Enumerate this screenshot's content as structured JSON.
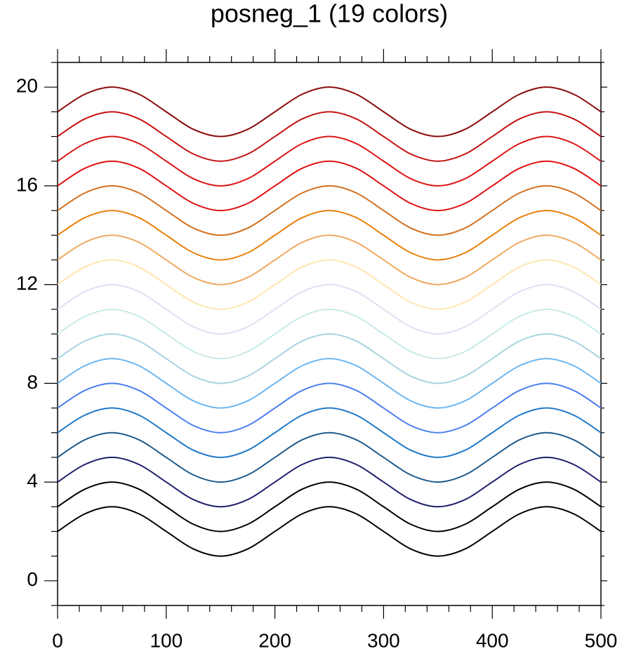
{
  "chart_data": {
    "type": "line",
    "title": "posneg_1 (19 colors)",
    "x": [
      0,
      25,
      50,
      75,
      100,
      125,
      150,
      175,
      200,
      225,
      250,
      275,
      300,
      325,
      350,
      375,
      400,
      425,
      450,
      475,
      500
    ],
    "xlim": [
      0,
      500
    ],
    "ylim": [
      -1,
      21
    ],
    "xticks": [
      0,
      100,
      200,
      300,
      400,
      500
    ],
    "yticks": [
      0,
      4,
      8,
      12,
      16,
      20
    ],
    "xminorticks": [
      20,
      40,
      60,
      80,
      120,
      140,
      160,
      180,
      220,
      240,
      260,
      280,
      320,
      340,
      360,
      380,
      420,
      440,
      460,
      480
    ],
    "yminorticks": [
      -1,
      1,
      2,
      3,
      5,
      6,
      7,
      9,
      10,
      11,
      13,
      14,
      15,
      17,
      18,
      19,
      21
    ],
    "series": [
      {
        "color": "#000000",
        "values": [
          2,
          2.71,
          3,
          2.71,
          2,
          1.29,
          1,
          1.29,
          2,
          2.71,
          3,
          2.71,
          2,
          1.29,
          1,
          1.29,
          2,
          2.71,
          3,
          2.71,
          2
        ]
      },
      {
        "color": "#000000",
        "values": [
          3,
          3.71,
          4,
          3.71,
          3,
          2.29,
          2,
          2.29,
          3,
          3.71,
          4,
          3.71,
          3,
          2.29,
          2,
          2.29,
          3,
          3.71,
          4,
          3.71,
          3
        ]
      },
      {
        "color": "#1f1f6e",
        "values": [
          4,
          4.71,
          5,
          4.71,
          4,
          3.29,
          3,
          3.29,
          4,
          4.71,
          5,
          4.71,
          4,
          3.29,
          3,
          3.29,
          4,
          4.71,
          5,
          4.71,
          4
        ]
      },
      {
        "color": "#1e5a8c",
        "values": [
          5,
          5.71,
          6,
          5.71,
          5,
          4.29,
          4,
          4.29,
          5,
          5.71,
          6,
          5.71,
          5,
          4.29,
          4,
          4.29,
          5,
          5.71,
          6,
          5.71,
          5
        ]
      },
      {
        "color": "#1f78c8",
        "values": [
          6,
          6.71,
          7,
          6.71,
          6,
          5.29,
          5,
          5.29,
          6,
          6.71,
          7,
          6.71,
          6,
          5.29,
          5,
          5.29,
          6,
          6.71,
          7,
          6.71,
          6
        ]
      },
      {
        "color": "#4a7ef0",
        "values": [
          7,
          7.71,
          8,
          7.71,
          7,
          6.29,
          6,
          6.29,
          7,
          7.71,
          8,
          7.71,
          7,
          6.29,
          6,
          6.29,
          7,
          7.71,
          8,
          7.71,
          7
        ]
      },
      {
        "color": "#6db6f0",
        "values": [
          8,
          8.71,
          9,
          8.71,
          8,
          7.29,
          7,
          7.29,
          8,
          8.71,
          9,
          8.71,
          8,
          7.29,
          7,
          7.29,
          8,
          8.71,
          9,
          8.71,
          8
        ]
      },
      {
        "color": "#a8d4e0",
        "values": [
          9,
          9.71,
          10,
          9.71,
          9,
          8.29,
          8,
          8.29,
          9,
          9.71,
          10,
          9.71,
          9,
          8.29,
          8,
          8.29,
          9,
          9.71,
          10,
          9.71,
          9
        ]
      },
      {
        "color": "#c8eaea",
        "values": [
          10,
          10.71,
          11,
          10.71,
          10,
          9.29,
          9,
          9.29,
          10,
          10.71,
          11,
          10.71,
          10,
          9.29,
          9,
          9.29,
          10,
          10.71,
          11,
          10.71,
          10
        ]
      },
      {
        "color": "#e0e0f4",
        "values": [
          11,
          11.71,
          12,
          11.71,
          11,
          10.29,
          10,
          10.29,
          11,
          11.71,
          12,
          11.71,
          11,
          10.29,
          10,
          10.29,
          11,
          11.71,
          12,
          11.71,
          11
        ]
      },
      {
        "color": "#ffe6b0",
        "values": [
          12,
          12.71,
          13,
          12.71,
          12,
          11.29,
          11,
          11.29,
          12,
          12.71,
          13,
          12.71,
          12,
          11.29,
          11,
          11.29,
          12,
          12.71,
          13,
          12.71,
          12
        ]
      },
      {
        "color": "#f0a860",
        "values": [
          13,
          13.71,
          14,
          13.71,
          13,
          12.29,
          12,
          12.29,
          13,
          13.71,
          14,
          13.71,
          13,
          12.29,
          12,
          12.29,
          13,
          13.71,
          14,
          13.71,
          13
        ]
      },
      {
        "color": "#e8800a",
        "values": [
          14,
          14.71,
          15,
          14.71,
          14,
          13.29,
          13,
          13.29,
          14,
          14.71,
          15,
          14.71,
          14,
          13.29,
          13,
          13.29,
          14,
          14.71,
          15,
          14.71,
          14
        ]
      },
      {
        "color": "#d27020",
        "values": [
          15,
          15.71,
          16,
          15.71,
          15,
          14.29,
          14,
          14.29,
          15,
          15.71,
          16,
          15.71,
          15,
          14.29,
          14,
          14.29,
          15,
          15.71,
          16,
          15.71,
          15
        ]
      },
      {
        "color": "#e01010",
        "values": [
          16,
          16.71,
          17,
          16.71,
          16,
          15.29,
          15,
          15.29,
          16,
          16.71,
          17,
          16.71,
          16,
          15.29,
          15,
          15.29,
          16,
          16.71,
          17,
          16.71,
          16
        ]
      },
      {
        "color": "#dc1414",
        "values": [
          17,
          17.71,
          18,
          17.71,
          17,
          16.29,
          16,
          16.29,
          17,
          17.71,
          18,
          17.71,
          17,
          16.29,
          16,
          16.29,
          17,
          17.71,
          18,
          17.71,
          17
        ]
      },
      {
        "color": "#c41010",
        "values": [
          18,
          18.71,
          19,
          18.71,
          18,
          17.29,
          17,
          17.29,
          18,
          18.71,
          19,
          18.71,
          18,
          17.29,
          17,
          17.29,
          18,
          18.71,
          19,
          18.71,
          18
        ]
      },
      {
        "color": "#8b0a0a",
        "values": [
          19,
          19.71,
          20,
          19.71,
          19,
          18.29,
          18,
          18.29,
          19,
          19.71,
          20,
          19.71,
          19,
          18.29,
          18,
          18.29,
          19,
          19.71,
          20,
          19.71,
          19
        ]
      }
    ]
  }
}
